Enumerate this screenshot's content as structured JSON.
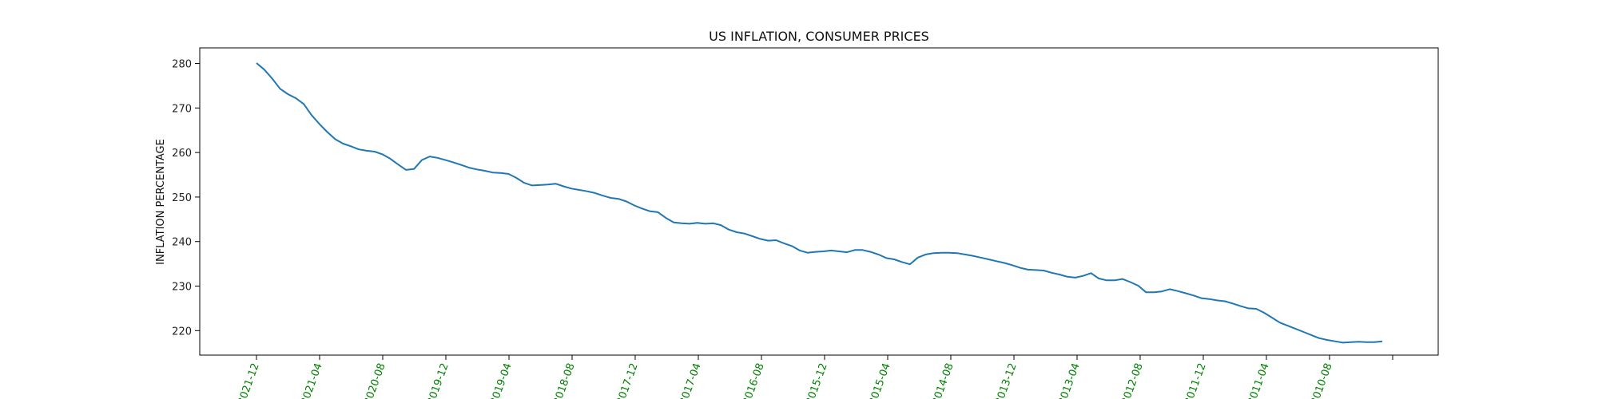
{
  "chart_data": {
    "type": "line",
    "title": "US INFLATION, CONSUMER PRICES",
    "xlabel": "",
    "ylabel": "INFLATION PERCENTAGE",
    "x_tick_labels": [
      "2021-12",
      "2021-04",
      "2020-08",
      "2019-12",
      "2019-04",
      "2018-08",
      "2017-12",
      "2017-04",
      "2016-08",
      "2015-12",
      "2015-04",
      "2014-08",
      "2013-12",
      "2013-04",
      "2012-08",
      "2011-12",
      "2011-04",
      "2010-08",
      ""
    ],
    "x_tick_color": "#008000",
    "x_order": "reverse-chronological",
    "y_ticks": [
      220,
      230,
      240,
      250,
      260,
      270,
      280
    ],
    "ylim": [
      214.5,
      283.5
    ],
    "grid": false,
    "line_color": "#1f77b4",
    "series": [
      {
        "values": [
          280.1,
          278.6,
          276.6,
          274.3,
          273.1,
          272.2,
          270.9,
          268.4,
          266.4,
          264.6,
          263.0,
          262.0,
          261.4,
          260.7,
          260.4,
          260.2,
          259.6,
          258.6,
          257.3,
          256.1,
          256.3,
          258.3,
          259.1,
          258.8,
          258.3,
          257.8,
          257.2,
          256.6,
          256.2,
          255.9,
          255.5,
          255.4,
          255.2,
          254.3,
          253.2,
          252.6,
          252.7,
          252.8,
          253.0,
          252.4,
          251.9,
          251.6,
          251.3,
          250.9,
          250.3,
          249.8,
          249.6,
          249.0,
          248.1,
          247.4,
          246.8,
          246.6,
          245.3,
          244.3,
          244.1,
          244.0,
          244.2,
          244.0,
          244.1,
          243.7,
          242.7,
          242.1,
          241.8,
          241.2,
          240.6,
          240.2,
          240.3,
          239.6,
          239.0,
          238.0,
          237.5,
          237.7,
          237.8,
          238.0,
          237.8,
          237.6,
          238.1,
          238.1,
          237.7,
          237.1,
          236.3,
          236.0,
          235.4,
          234.9,
          236.4,
          237.1,
          237.4,
          237.5,
          237.5,
          237.4,
          237.1,
          236.8,
          236.4,
          236.0,
          235.6,
          235.2,
          234.7,
          234.1,
          233.7,
          233.6,
          233.5,
          233.0,
          232.6,
          232.1,
          231.9,
          232.3,
          232.9,
          231.7,
          231.3,
          231.3,
          231.6,
          230.9,
          230.1,
          228.6,
          228.6,
          228.8,
          229.3,
          228.9,
          228.4,
          227.9,
          227.3,
          227.1,
          226.8,
          226.6,
          226.1,
          225.5,
          225.0,
          224.9,
          224.0,
          222.9,
          221.8,
          221.1,
          220.4,
          219.7,
          219.0,
          218.3,
          217.9,
          217.6,
          217.3,
          217.4,
          217.5,
          217.4,
          217.4,
          217.6
        ]
      }
    ]
  }
}
